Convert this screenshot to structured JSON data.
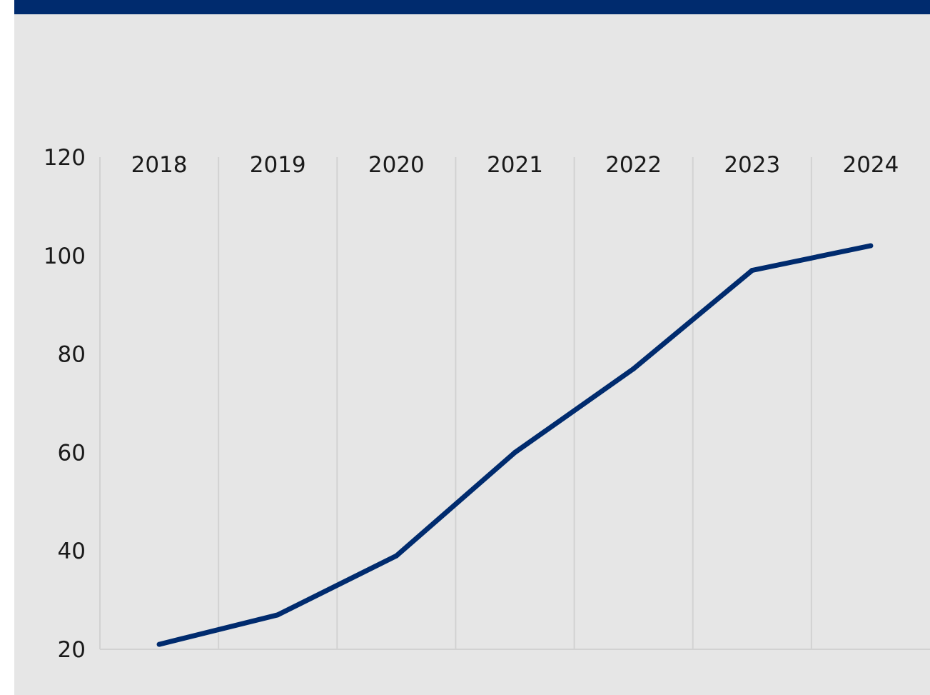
{
  "colors": {
    "background": "#e6e6e6",
    "top_band": "#002b6e",
    "line": "#002b6e",
    "grid": "#d2d2d2"
  },
  "chart_data": {
    "type": "line",
    "title": "",
    "xlabel": "",
    "ylabel": "",
    "x": [
      "2018",
      "2019",
      "2020",
      "2021",
      "2022",
      "2023",
      "2024"
    ],
    "series": [
      {
        "values": [
          21,
          27,
          39,
          60,
          77,
          97,
          102
        ]
      }
    ],
    "ylim": [
      20,
      120
    ],
    "yticks": [
      "120",
      "100",
      "80",
      "60",
      "40",
      "20"
    ],
    "x_tick_position": "top",
    "grid": {
      "vertical": true,
      "horizontal": false
    },
    "legend": "none"
  }
}
